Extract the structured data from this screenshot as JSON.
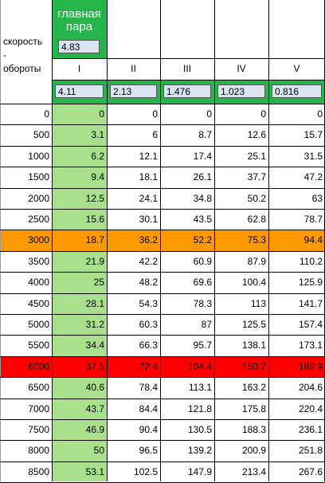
{
  "side_label": "скорость\n-\nобороты",
  "title": "главная\nпара",
  "main_pair_value": "4.83",
  "gear_headers": [
    "I",
    "II",
    "III",
    "IV",
    "V"
  ],
  "gear_ratios": [
    "4.11",
    "2.13",
    "1.476",
    "1.023",
    "0.816"
  ],
  "rpm": [
    "0",
    "500",
    "1000",
    "1500",
    "2000",
    "2500",
    "3000",
    "3500",
    "4000",
    "4500",
    "5000",
    "5500",
    "6000",
    "6500",
    "7000",
    "7500",
    "8000",
    "8500"
  ],
  "rows": [
    [
      "0",
      "0",
      "0",
      "0",
      "0"
    ],
    [
      "3.1",
      "6",
      "8.7",
      "12.6",
      "15.7"
    ],
    [
      "6.2",
      "12.1",
      "17.4",
      "25.1",
      "31.5"
    ],
    [
      "9.4",
      "18.1",
      "26.1",
      "37.7",
      "47.2"
    ],
    [
      "12.5",
      "24.1",
      "34.8",
      "50.2",
      "63"
    ],
    [
      "15.6",
      "30.1",
      "43.5",
      "62.8",
      "78.7"
    ],
    [
      "18.7",
      "36.2",
      "52.2",
      "75.3",
      "94.4"
    ],
    [
      "21.9",
      "42.2",
      "60.9",
      "87.9",
      "110.2"
    ],
    [
      "25",
      "48.2",
      "69.6",
      "100.4",
      "125.9"
    ],
    [
      "28.1",
      "54.3",
      "78.3",
      "113",
      "141.7"
    ],
    [
      "31.2",
      "60.3",
      "87",
      "125.5",
      "157.4"
    ],
    [
      "34.4",
      "66.3",
      "95.7",
      "138.1",
      "173.1"
    ],
    [
      "37.5",
      "72.4",
      "104.4",
      "150.7",
      "188.9"
    ],
    [
      "40.6",
      "78.4",
      "113.1",
      "163.2",
      "204.6"
    ],
    [
      "43.7",
      "84.4",
      "121.8",
      "175.8",
      "220.4"
    ],
    [
      "46.9",
      "90.4",
      "130.5",
      "188.3",
      "236.1"
    ],
    [
      "50",
      "96.5",
      "139.2",
      "200.9",
      "251.8"
    ],
    [
      "53.1",
      "102.5",
      "147.9",
      "213.4",
      "267.6"
    ]
  ],
  "highlight": {
    "orange_row": "3000",
    "red_row": "6000"
  },
  "colors": {
    "green": "#a8e08c",
    "title_green": "#25b54a",
    "orange": "#ff9900",
    "red": "#ff0000",
    "input": "#d9e5f3"
  }
}
